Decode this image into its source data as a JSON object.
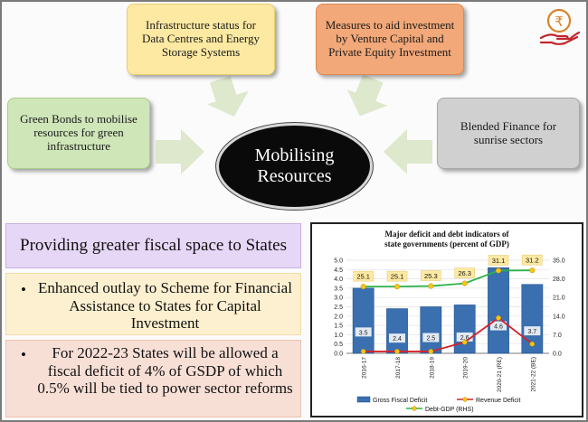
{
  "diagram": {
    "center_label": "Mobilising Resources",
    "boxes": {
      "infra": "Infrastructure status for Data Centres and Energy Storage Systems",
      "venture": "Measures to aid investment by Venture Capital and Private Equity Investment",
      "green": "Green Bonds to mobilise resources for green infrastructure",
      "blended": "Blended Finance for sunrise sectors"
    },
    "logo_icon": "rupee-hand-coin-icon",
    "colors": {
      "infra": "#fde9a2",
      "venture": "#f2a878",
      "green": "#cfe6b8",
      "blended": "#d0d0d0",
      "arrow": "#d9e6c7"
    }
  },
  "states": {
    "title": "Providing greater fiscal space to States",
    "bullet_symbol": "•",
    "outlay": "Enhanced outlay to Scheme for Financial Assistance to States for Capital Investment",
    "deficit": "For 2022-23 States will be allowed a fiscal deficit of 4% of GSDP of which 0.5% will be tied to power sector reforms"
  },
  "chart_data": {
    "type": "bar",
    "title": "Major deficit and debt indicators of state governments (percent of GDP)",
    "categories": [
      "2016-17",
      "2017-18",
      "2018-19",
      "2019-20",
      "2020-21 (RE)",
      "2021-22 (BE)"
    ],
    "y_left_ticks": [
      "0.0",
      "0.5",
      "1.0",
      "1.5",
      "2.0",
      "2.5",
      "3.0",
      "3.5",
      "4.0",
      "4.5",
      "5.0"
    ],
    "y_right_ticks": [
      "0.0",
      "7.0",
      "14.0",
      "21.0",
      "28.0",
      "35.0"
    ],
    "ylim_left": [
      0,
      5
    ],
    "ylim_right": [
      0,
      35
    ],
    "series": [
      {
        "name": "Gross Fiscal Deficit",
        "type": "bar",
        "axis": "left",
        "color": "#3a6fb0",
        "values": [
          3.5,
          2.4,
          2.5,
          2.6,
          4.6,
          3.7
        ]
      },
      {
        "name": "Revenue Deficit",
        "type": "line",
        "axis": "left",
        "color": "#d6222a",
        "values": [
          0.1,
          0.1,
          0.1,
          0.6,
          1.9,
          0.5
        ]
      },
      {
        "name": "Debt-GDP (RHS)",
        "type": "line",
        "axis": "right",
        "color": "#2db34a",
        "values": [
          25.1,
          25.1,
          25.3,
          26.3,
          31.1,
          31.2
        ]
      }
    ],
    "data_labels": {
      "bars": [
        "3.5",
        "2.4",
        "2.5",
        "2.6",
        "4.6",
        "3.7"
      ],
      "debt": [
        "25.1",
        "25.1",
        "25.3",
        "26.3",
        "31.1",
        "31.2"
      ]
    },
    "legend": [
      "Gross Fiscal Deficit",
      "Revenue Deficit",
      "Debt-GDP (RHS)"
    ],
    "legend_position": "bottom"
  }
}
